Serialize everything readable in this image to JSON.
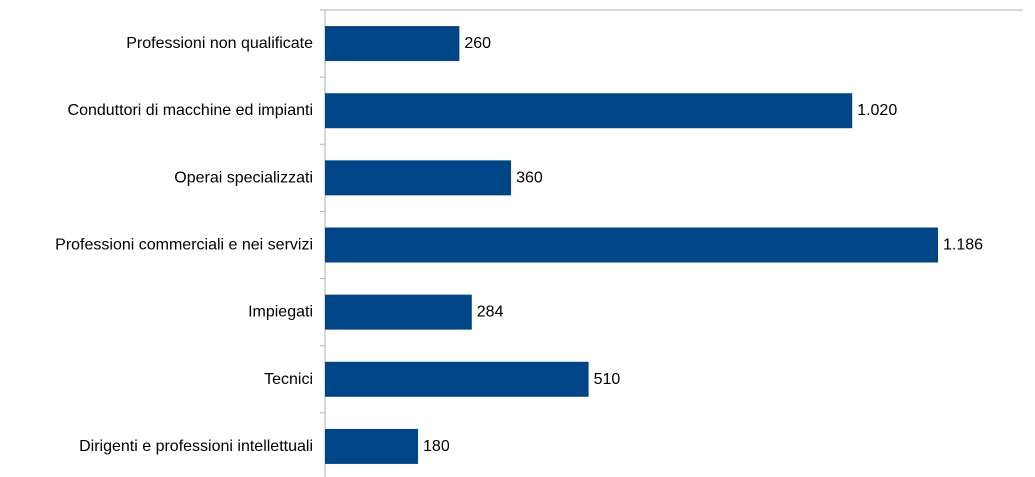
{
  "chart_data": {
    "type": "bar",
    "orientation": "horizontal",
    "categories": [
      "Professioni non qualificate",
      "Conduttori di macchine ed impianti",
      "Operai specializzati",
      "Professioni commerciali e nei servizi",
      "Impiegati",
      "Tecnici",
      "Dirigenti e professioni intellettuali"
    ],
    "values": [
      260,
      1020,
      360,
      1186,
      284,
      510,
      180
    ],
    "value_labels": [
      "260",
      "1.020",
      "360",
      "1.186",
      "284",
      "510",
      "180"
    ],
    "title": "",
    "xlabel": "",
    "ylabel": "",
    "xlim": [
      0,
      1400
    ],
    "grid": false,
    "legend": "none",
    "colors": {
      "bar": "#004586",
      "axis": "#b3b3b3"
    }
  }
}
